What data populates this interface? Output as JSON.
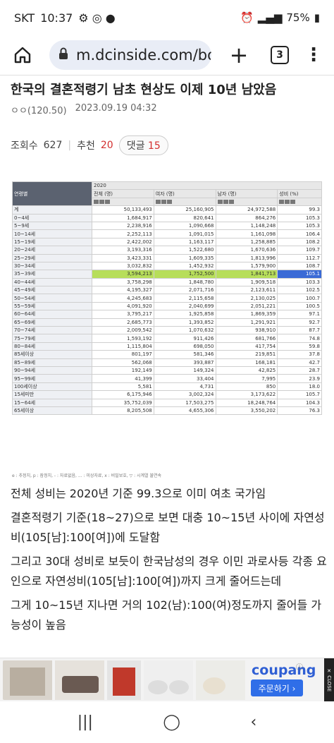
{
  "status": {
    "carrier": "SKT",
    "time": "10:37",
    "battery": "75%"
  },
  "browser": {
    "url": "m.dcinside.com/bo",
    "tab_count": "3"
  },
  "post": {
    "title": "한국의 결혼적령기 남초 현상도 이제 10년 남았음",
    "author": "ㅇㅇ(120.50)",
    "date": "2023.09.19 04:32",
    "views_label": "조회수",
    "views": "627",
    "recommend_label": "추천",
    "recommend": "20",
    "comments_label": "댓글",
    "comments": "15"
  },
  "table": {
    "year": "2020",
    "col_age": "연령별",
    "col_total": "전체 (명)",
    "col_female": "여자 (명)",
    "col_male": "남자 (명)",
    "col_ratio": "성비 (%)",
    "rows": [
      [
        "계",
        "50,133,493",
        "25,160,905",
        "24,972,588",
        "99.3"
      ],
      [
        "0~4세",
        "1,684,917",
        "820,641",
        "864,276",
        "105.3"
      ],
      [
        "5~9세",
        "2,238,916",
        "1,090,668",
        "1,148,248",
        "105.3"
      ],
      [
        "10~14세",
        "2,252,113",
        "1,091,015",
        "1,161,098",
        "106.4"
      ],
      [
        "15~19세",
        "2,422,002",
        "1,163,117",
        "1,258,885",
        "108.2"
      ],
      [
        "20~24세",
        "3,193,316",
        "1,522,680",
        "1,670,636",
        "109.7"
      ],
      [
        "25~29세",
        "3,423,331",
        "1,609,335",
        "1,813,996",
        "112.7"
      ],
      [
        "30~34세",
        "3,032,832",
        "1,452,932",
        "1,579,900",
        "108.7"
      ],
      [
        "35~39세",
        "3,594,213",
        "1,752,500",
        "1,841,713",
        "105.1"
      ],
      [
        "40~44세",
        "3,758,298",
        "1,848,780",
        "1,909,518",
        "103.3"
      ],
      [
        "45~49세",
        "4,195,327",
        "2,071,716",
        "2,123,611",
        "102.5"
      ],
      [
        "50~54세",
        "4,245,683",
        "2,115,658",
        "2,130,025",
        "100.7"
      ],
      [
        "55~59세",
        "4,091,920",
        "2,040,699",
        "2,051,221",
        "100.5"
      ],
      [
        "60~64세",
        "3,795,217",
        "1,925,858",
        "1,869,359",
        "97.1"
      ],
      [
        "65~69세",
        "2,685,773",
        "1,393,852",
        "1,291,921",
        "92.7"
      ],
      [
        "70~74세",
        "2,009,542",
        "1,070,632",
        "938,910",
        "87.7"
      ],
      [
        "75~79세",
        "1,593,192",
        "911,426",
        "681,766",
        "74.8"
      ],
      [
        "80~84세",
        "1,115,804",
        "698,050",
        "417,754",
        "59.8"
      ],
      [
        "85세이상",
        "801,197",
        "581,346",
        "219,851",
        "37.8"
      ],
      [
        "85~89세",
        "562,068",
        "393,887",
        "168,181",
        "42.7"
      ],
      [
        "90~94세",
        "192,149",
        "149,324",
        "42,825",
        "28.7"
      ],
      [
        "95~99세",
        "41,399",
        "33,404",
        "7,995",
        "23.9"
      ],
      [
        "100세이상",
        "5,581",
        "4,731",
        "850",
        "18.0"
      ],
      [
        "15세미만",
        "6,175,946",
        "3,002,324",
        "3,173,622",
        "105.7"
      ],
      [
        "15~64세",
        "35,752,039",
        "17,503,275",
        "18,248,764",
        "104.3"
      ],
      [
        "65세이상",
        "8,205,508",
        "4,655,306",
        "3,550,202",
        "76.3"
      ]
    ],
    "footnote": "e : 추정치, p : 잠정치, - : 자료없음, ... : 미상자료, x : 비밀보호, ▽ : 시계열 불연속"
  },
  "body": {
    "p1": "전체 성비는 2020년 기준 99.3으로 이미 여초 국가임",
    "p2": "결혼적령기 기준(18~27)으로 보면 대충 10~15년 사이에 자연성비(105[남]:100[여])에 도달함",
    "p3": "그리고 30대 성비로 보듯이 한국남성의 경우 이민 과로사등 각종 요인으로 자연성비(105[남]:100[여])까지 크게 줄어드는데",
    "p4": "그게 10~15년 지나면 거의 102(남):100(여)정도까지 줄어들 가능성이 높음"
  },
  "ad": {
    "brand": "coupang",
    "cta": "주문하기 ›",
    "close": "✕ CLOSE"
  },
  "icons": {
    "home": "home-icon",
    "lock": "lock-icon",
    "plus": "plus-icon",
    "menu": "more-vert-icon"
  }
}
